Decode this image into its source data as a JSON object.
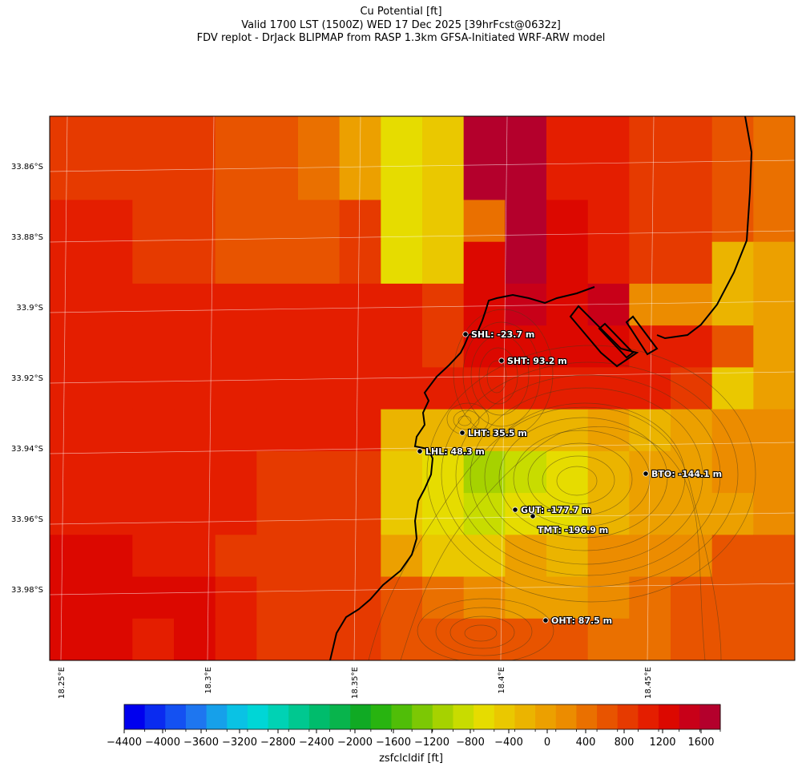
{
  "figure": {
    "title_lines": [
      "Cu Potential [ft]",
      "Valid 1700 LST (1500Z) WED 17 Dec 2025 [39hrFcst@0632z]",
      "FDV replot - DrJack BLIPMAP from RASP 1.3km GFSA-Initiated WRF-ARW model"
    ]
  },
  "chart_data": {
    "type": "heatmap",
    "title": "Cu Potential [ft]",
    "variable": "zsfclcldif",
    "colorbar_label": "zsfclcldif [ft]",
    "colorbar_range": [
      -4400,
      1800
    ],
    "colorbar_step": 200,
    "colorbar_ticks": [
      -4400,
      -4000,
      -3600,
      -3200,
      -2800,
      -2400,
      -2000,
      -1600,
      -1200,
      -800,
      -400,
      0,
      400,
      800,
      1200,
      1600
    ],
    "colorbar_tick_labels": [
      "−4400",
      "−4000",
      "−3600",
      "−3200",
      "−2800",
      "−2400",
      "−2000",
      "−1600",
      "−1200",
      "−800",
      "−400",
      "0",
      "400",
      "800",
      "1200",
      "1600"
    ],
    "colors": [
      "#0000ee",
      "#0a2bf0",
      "#1451f2",
      "#1e76f0",
      "#16a0ea",
      "#0ac2e4",
      "#00d6d6",
      "#00d2b4",
      "#00c890",
      "#00bc6c",
      "#08b44c",
      "#10aa24",
      "#28b410",
      "#50be08",
      "#7cc804",
      "#a6d200",
      "#c8dc00",
      "#e6dc00",
      "#eac800",
      "#ebb400",
      "#eca000",
      "#ec8c00",
      "#ea7000",
      "#e85400",
      "#e63a00",
      "#e41e00",
      "#dc0800",
      "#c80018",
      "#b4002c"
    ],
    "lat_ticks": [
      "33.86°S",
      "33.88°S",
      "33.9°S",
      "33.92°S",
      "33.94°S",
      "33.96°S",
      "33.98°S"
    ],
    "lon_ticks": [
      "18.25°E",
      "18.3°E",
      "18.35°E",
      "18.4°E",
      "18.45°E"
    ],
    "grid_cols": 18,
    "grid_rows": 13,
    "grid_values": [
      [
        500,
        500,
        550,
        550,
        350,
        300,
        50,
        -350,
        -850,
        -800,
        1400,
        1250,
        650,
        600,
        550,
        450,
        200,
        100
      ],
      [
        500,
        500,
        550,
        550,
        350,
        300,
        50,
        -350,
        -850,
        -800,
        1400,
        1250,
        650,
        600,
        550,
        450,
        200,
        100
      ],
      [
        700,
        700,
        550,
        550,
        350,
        350,
        350,
        400,
        -850,
        -800,
        50,
        1200,
        850,
        650,
        500,
        500,
        200,
        100
      ],
      [
        700,
        700,
        550,
        550,
        350,
        350,
        350,
        400,
        -850,
        -800,
        900,
        1200,
        850,
        650,
        500,
        500,
        -450,
        -350
      ],
      [
        700,
        750,
        700,
        700,
        750,
        700,
        750,
        700,
        650,
        400,
        900,
        1000,
        900,
        1000,
        -200,
        -150,
        -450,
        -350
      ],
      [
        650,
        700,
        700,
        700,
        750,
        700,
        750,
        700,
        650,
        500,
        800,
        850,
        800,
        800,
        650,
        600,
        300,
        -350
      ],
      [
        650,
        700,
        700,
        700,
        750,
        700,
        750,
        650,
        650,
        600,
        600,
        600,
        700,
        650,
        600,
        500,
        -650,
        -350
      ],
      [
        650,
        700,
        700,
        700,
        750,
        650,
        650,
        600,
        -450,
        -500,
        -450,
        -450,
        -600,
        -300,
        -450,
        -350,
        -200,
        -100
      ],
      [
        650,
        700,
        600,
        600,
        650,
        550,
        450,
        550,
        -700,
        -850,
        -1300,
        -1100,
        -850,
        -500,
        -350,
        -300,
        -200,
        -100
      ],
      [
        650,
        700,
        600,
        600,
        600,
        500,
        450,
        450,
        -800,
        -900,
        -1050,
        -900,
        -850,
        -500,
        -400,
        -300,
        -250,
        -150
      ],
      [
        850,
        850,
        650,
        700,
        550,
        500,
        450,
        450,
        -300,
        -700,
        -800,
        -350,
        -500,
        -200,
        -200,
        -150,
        200,
        300
      ],
      [
        850,
        850,
        850,
        900,
        650,
        550,
        500,
        450,
        300,
        100,
        -200,
        -250,
        -300,
        -100,
        50,
        200,
        300,
        300
      ],
      [
        850,
        850,
        700,
        900,
        650,
        550,
        450,
        400,
        350,
        300,
        250,
        200,
        200,
        150,
        150,
        200,
        300,
        300
      ]
    ],
    "sites": [
      {
        "code": "SHL",
        "label": "SHL: -23.7 m",
        "elev_m": -23.7
      },
      {
        "code": "SHT",
        "label": "SHT: 93.2 m",
        "elev_m": 93.2
      },
      {
        "code": "LHT",
        "label": "LHT: 35.5 m",
        "elev_m": 35.5
      },
      {
        "code": "LHL",
        "label": "LHL: 48.3 m",
        "elev_m": 48.3
      },
      {
        "code": "BTO",
        "label": "BTO: -144.1 m",
        "elev_m": -144.1
      },
      {
        "code": "GUT",
        "label": "GUT: -177.7 m",
        "elev_m": -177.7
      },
      {
        "code": "TMT",
        "label": "TMT: -196.9 m",
        "elev_m": -196.9
      },
      {
        "code": "OHT",
        "label": "OHT: 87.5 m",
        "elev_m": 87.5
      }
    ]
  }
}
